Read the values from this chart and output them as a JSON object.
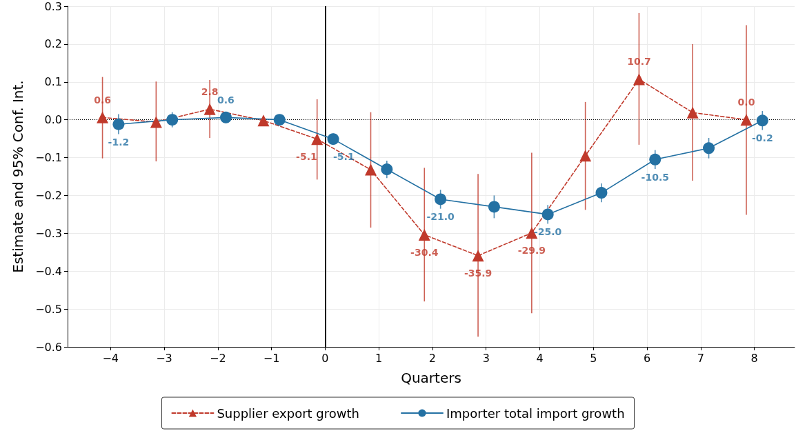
{
  "chart_data": {
    "type": "line",
    "xlabel": "Quarters",
    "ylabel": "Estimate and 95% Conf. Int.",
    "xlim": [
      -4.8,
      8.75
    ],
    "xticks": [
      {
        "value": -4,
        "label": "−4"
      },
      {
        "value": -3,
        "label": "−3"
      },
      {
        "value": -2,
        "label": "−2"
      },
      {
        "value": -1,
        "label": "−1"
      },
      0,
      1,
      2,
      3,
      4,
      5,
      6,
      7,
      8
    ],
    "ylim": [
      -0.6,
      0.3
    ],
    "yticks": [
      {
        "value": -0.6,
        "label": "−0.6"
      },
      {
        "value": -0.5,
        "label": "−0.5"
      },
      {
        "value": -0.4,
        "label": "−0.4"
      },
      {
        "value": -0.3,
        "label": "−0.3"
      },
      {
        "value": -0.2,
        "label": "−0.2"
      },
      {
        "value": -0.1,
        "label": "−0.1"
      },
      "0.0",
      0.1,
      0.2,
      0.3
    ],
    "grid": true,
    "legend": "bottom",
    "annotations": [
      {
        "text": "0.6",
        "x": -4.15,
        "y": 0.006
      },
      {
        "text": "2.8",
        "x": -2.15,
        "y": 0.028
      },
      {
        "text": "-5.1",
        "x": -0.15,
        "y": -0.051
      },
      {
        "text": "-30.4",
        "x": 1.85,
        "y": -0.304
      },
      {
        "text": "-35.9",
        "x": 2.85,
        "y": -0.359
      },
      {
        "text": "-29.9",
        "x": 3.85,
        "y": -0.299
      },
      {
        "text": "10.7",
        "x": 5.85,
        "y": 0.107
      },
      {
        "text": "0.0",
        "x": 7.85,
        "y": 0.0
      },
      {
        "text": "-1.2",
        "x": -3.85,
        "y": -0.012
      },
      {
        "text": "0.6",
        "x": -1.85,
        "y": 0.006
      },
      {
        "text": "-5.1",
        "x": 0.15,
        "y": -0.051
      },
      {
        "text": "-21.0",
        "x": 2.15,
        "y": -0.21
      },
      {
        "text": "-25.0",
        "x": 4.15,
        "y": -0.25
      },
      {
        "text": "-10.5",
        "x": 6.15,
        "y": -0.105
      },
      {
        "text": "-0.2",
        "x": 8.15,
        "y": -0.002
      }
    ],
    "ref_lines": [
      {
        "axis": "y",
        "value": 0,
        "color": "#000000",
        "line_style": "dotted"
      },
      {
        "axis": "x",
        "value": 0,
        "color": "#000000",
        "line_style": "solid"
      }
    ],
    "series": [
      {
        "name": "Supplier export growth",
        "color": "#c0392b",
        "marker": "triangle",
        "line_style": "dashed",
        "x": [
          -4.15,
          -3.15,
          -2.15,
          -1.15,
          -0.15,
          0.85,
          1.85,
          2.85,
          3.85,
          4.85,
          5.85,
          6.85,
          7.85
        ],
        "values": [
          0.006,
          -0.006,
          0.028,
          -0.002,
          -0.051,
          -0.132,
          -0.304,
          -0.359,
          -0.299,
          -0.095,
          0.107,
          0.019,
          0.0
        ],
        "errors": [
          [
            -0.102,
            0.113
          ],
          [
            -0.11,
            0.101
          ],
          [
            -0.048,
            0.105
          ],
          null,
          [
            -0.158,
            0.054
          ],
          [
            -0.285,
            0.02
          ],
          [
            -0.48,
            -0.127
          ],
          [
            -0.573,
            -0.143
          ],
          [
            -0.511,
            -0.087
          ],
          [
            -0.238,
            0.047
          ],
          [
            -0.066,
            0.282
          ],
          [
            -0.161,
            0.2
          ],
          [
            -0.251,
            0.25
          ]
        ]
      },
      {
        "name": "Importer total import growth",
        "color": "#2471a3",
        "marker": "circle",
        "line_style": "solid",
        "x": [
          -3.85,
          -2.85,
          -1.85,
          -0.85,
          0.15,
          1.15,
          2.15,
          3.15,
          4.15,
          5.15,
          6.15,
          7.15,
          8.15
        ],
        "values": [
          -0.012,
          0.0,
          0.006,
          0.0,
          -0.051,
          -0.131,
          -0.21,
          -0.23,
          -0.25,
          -0.193,
          -0.105,
          -0.075,
          -0.002
        ],
        "errors": [
          [
            -0.038,
            0.015
          ],
          [
            -0.02,
            0.02
          ],
          [
            -0.009,
            0.021
          ],
          null,
          [
            -0.066,
            -0.036
          ],
          [
            -0.154,
            -0.108
          ],
          [
            -0.235,
            -0.185
          ],
          [
            -0.26,
            -0.2
          ],
          [
            -0.275,
            -0.225
          ],
          [
            -0.218,
            -0.168
          ],
          [
            -0.13,
            -0.08
          ],
          [
            -0.102,
            -0.048
          ],
          [
            -0.027,
            0.023
          ]
        ]
      }
    ]
  }
}
